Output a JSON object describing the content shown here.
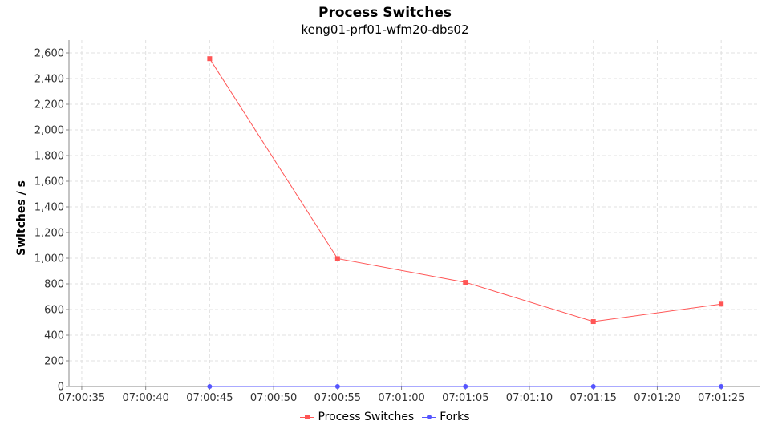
{
  "chart_data": {
    "type": "line",
    "title": "Process Switches",
    "subtitle": "keng01-prf01-wfm20-dbs02",
    "xlabel": "",
    "ylabel": "Switches / s",
    "x_ticks": [
      "07:00:35",
      "07:00:40",
      "07:00:45",
      "07:00:50",
      "07:00:55",
      "07:01:00",
      "07:01:05",
      "07:01:10",
      "07:01:15",
      "07:01:20",
      "07:01:25"
    ],
    "x": [
      "07:00:45",
      "07:00:55",
      "07:01:05",
      "07:01:15",
      "07:01:25"
    ],
    "y_ticks": [
      0,
      200,
      400,
      600,
      800,
      1000,
      1200,
      1400,
      1600,
      1800,
      2000,
      2200,
      2400,
      2600
    ],
    "y_tick_labels": [
      "0",
      "200",
      "400",
      "600",
      "800",
      "1,000",
      "1,200",
      "1,400",
      "1,600",
      "1,800",
      "2,000",
      "2,200",
      "2,400",
      "2,600"
    ],
    "ylim": [
      0,
      2700
    ],
    "xlim": [
      "07:00:34",
      "07:01:28"
    ],
    "grid": true,
    "legend_position": "bottom",
    "series": [
      {
        "name": "Process Switches",
        "color": "#ff5555",
        "marker": "square",
        "values": [
          2555,
          997,
          812,
          506,
          642
        ]
      },
      {
        "name": "Forks",
        "color": "#5555ff",
        "marker": "circle",
        "values": [
          0,
          0,
          0,
          0,
          0
        ]
      }
    ]
  }
}
